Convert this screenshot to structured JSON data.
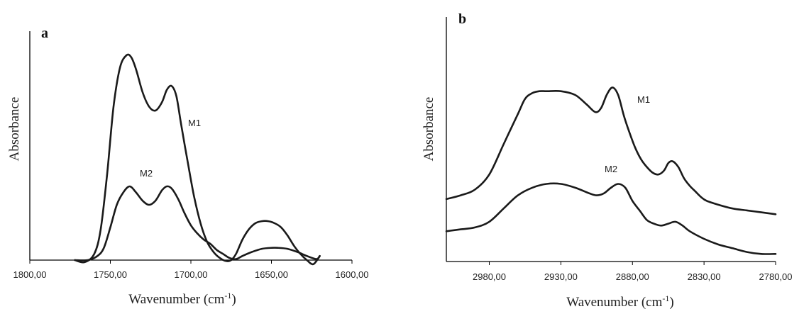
{
  "chart_data": [
    {
      "type": "line",
      "panel_label": "a",
      "xlabel": "Wavenumber (cm",
      "xlabel_sup": "-1",
      "xlabel_close": ")",
      "ylabel": "Absorbance",
      "xlim": [
        1800,
        1600
      ],
      "x_reversed": true,
      "ylim": [
        0,
        1
      ],
      "x_ticks": [
        1800,
        1750,
        1700,
        1650,
        1600
      ],
      "x_tick_labels": [
        "1800,00",
        "1750,00",
        "1700,00",
        "1650,00",
        "1600,00"
      ],
      "y_ticks_visible": false,
      "grid": false,
      "series": [
        {
          "name": "M1",
          "x": [
            1772,
            1766,
            1760,
            1756,
            1752,
            1748,
            1744,
            1740,
            1737,
            1734,
            1730,
            1726,
            1722,
            1718,
            1715,
            1712,
            1709,
            1706,
            1702,
            1698,
            1694,
            1690,
            1686,
            1682,
            1678,
            1675,
            1672,
            1668,
            1664,
            1660,
            1656,
            1652,
            1648,
            1644,
            1640,
            1636,
            1632,
            1628,
            1624,
            1620
          ],
          "y": [
            0.0,
            -0.01,
            0.03,
            0.15,
            0.42,
            0.75,
            0.94,
            1.0,
            0.99,
            0.93,
            0.82,
            0.75,
            0.73,
            0.77,
            0.83,
            0.85,
            0.8,
            0.66,
            0.48,
            0.31,
            0.18,
            0.09,
            0.04,
            0.01,
            -0.005,
            0.0,
            0.03,
            0.1,
            0.15,
            0.18,
            0.19,
            0.19,
            0.18,
            0.16,
            0.12,
            0.07,
            0.03,
            0.0,
            -0.02,
            0.02
          ]
        },
        {
          "name": "M2",
          "x": [
            1772,
            1764,
            1758,
            1754,
            1750,
            1746,
            1742,
            1738,
            1734,
            1730,
            1726,
            1722,
            1718,
            1715,
            1712,
            1708,
            1704,
            1700,
            1696,
            1692,
            1688,
            1684,
            1680,
            1676,
            1672,
            1668,
            1662,
            1656,
            1650,
            1646,
            1640,
            1634,
            1628,
            1622,
            1620
          ],
          "y": [
            0.0,
            0.0,
            0.02,
            0.06,
            0.16,
            0.27,
            0.33,
            0.36,
            0.33,
            0.29,
            0.27,
            0.29,
            0.34,
            0.36,
            0.35,
            0.3,
            0.23,
            0.17,
            0.13,
            0.1,
            0.08,
            0.05,
            0.03,
            0.01,
            0.005,
            0.02,
            0.04,
            0.055,
            0.06,
            0.06,
            0.055,
            0.04,
            0.02,
            0.005,
            0.02
          ]
        }
      ],
      "series_labels": [
        {
          "series": "M1",
          "text": "M1"
        },
        {
          "series": "M2",
          "text": "M2"
        }
      ]
    },
    {
      "type": "line",
      "panel_label": "b",
      "xlabel": "Wavenumber (cm",
      "xlabel_sup": "-1",
      "xlabel_close": ")",
      "ylabel": "Absorbance",
      "xlim": [
        3010,
        2780
      ],
      "x_reversed": true,
      "ylim": [
        0,
        1
      ],
      "x_ticks": [
        2980,
        2930,
        2880,
        2830,
        2780
      ],
      "x_tick_labels": [
        "2980,00",
        "2930,00",
        "2880,00",
        "2830,00",
        "2780,00"
      ],
      "y_ticks_visible": false,
      "grid": false,
      "series": [
        {
          "name": "M1",
          "x": [
            3010,
            3000,
            2990,
            2980,
            2970,
            2960,
            2955,
            2950,
            2945,
            2940,
            2930,
            2920,
            2912,
            2906,
            2902,
            2898,
            2894,
            2890,
            2886,
            2882,
            2878,
            2874,
            2870,
            2866,
            2862,
            2858,
            2855,
            2852,
            2848,
            2844,
            2840,
            2836,
            2832,
            2828,
            2820,
            2810,
            2800,
            2790,
            2780
          ],
          "y": [
            0.33,
            0.35,
            0.38,
            0.46,
            0.62,
            0.78,
            0.86,
            0.89,
            0.9,
            0.9,
            0.9,
            0.88,
            0.83,
            0.79,
            0.81,
            0.88,
            0.92,
            0.88,
            0.77,
            0.68,
            0.6,
            0.54,
            0.5,
            0.47,
            0.46,
            0.48,
            0.52,
            0.53,
            0.5,
            0.44,
            0.4,
            0.37,
            0.34,
            0.32,
            0.3,
            0.28,
            0.27,
            0.26,
            0.25
          ]
        },
        {
          "name": "M2",
          "x": [
            3010,
            3000,
            2990,
            2980,
            2970,
            2960,
            2950,
            2940,
            2930,
            2920,
            2910,
            2905,
            2900,
            2895,
            2890,
            2885,
            2880,
            2875,
            2870,
            2865,
            2860,
            2855,
            2850,
            2845,
            2840,
            2830,
            2820,
            2810,
            2800,
            2790,
            2780
          ],
          "y": [
            0.16,
            0.17,
            0.18,
            0.21,
            0.28,
            0.35,
            0.39,
            0.41,
            0.41,
            0.39,
            0.36,
            0.35,
            0.36,
            0.39,
            0.41,
            0.39,
            0.32,
            0.27,
            0.22,
            0.2,
            0.19,
            0.2,
            0.21,
            0.19,
            0.16,
            0.12,
            0.09,
            0.07,
            0.05,
            0.04,
            0.04
          ]
        }
      ],
      "series_labels": [
        {
          "series": "M1",
          "text": "M1"
        },
        {
          "series": "M2",
          "text": "M2"
        }
      ]
    }
  ]
}
